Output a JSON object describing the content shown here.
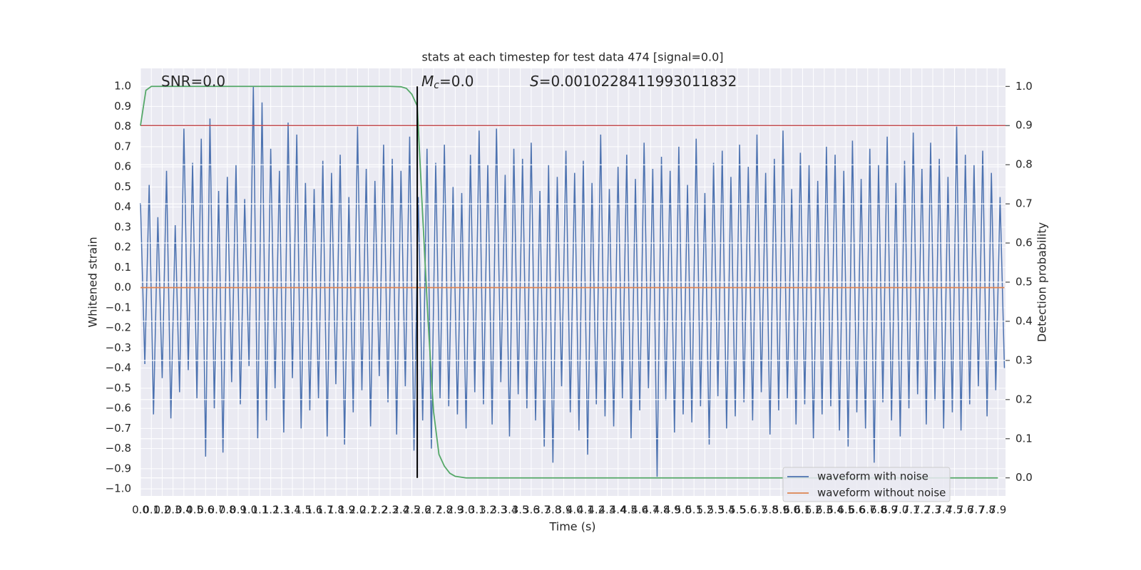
{
  "chart_data": {
    "type": "line",
    "title": "stats at each timestep for test data 474 [signal=0.0]",
    "x_label": "Time (s)",
    "y_label": "Whitened strain",
    "y2_label": "Detection probability",
    "annotations": [
      {
        "text": "SNR=0.0"
      },
      {
        "italic": "M",
        "sub": "c",
        "text": "=0.0"
      },
      {
        "italic": "S",
        "text": "=0.0010228411993011832"
      }
    ],
    "grid": true,
    "legend": "lower right",
    "xlim": [
      0,
      7.97
    ],
    "ylim": [
      -1.035,
      1.089
    ],
    "y2lim": [
      -0.046,
      1.046
    ],
    "xticks": [
      {
        "value": 0,
        "label": "0.0"
      },
      0.1,
      0.2,
      0.3,
      0.4,
      0.5,
      0.6,
      0.7,
      0.8,
      0.9,
      {
        "value": 1,
        "label": "1.0"
      },
      1.1,
      1.2,
      1.3,
      1.4,
      1.5,
      1.6,
      1.7,
      1.8,
      1.9,
      {
        "value": 2,
        "label": "2.0"
      },
      2.1,
      2.2,
      2.3,
      2.4,
      2.5,
      2.6,
      2.7,
      2.8,
      2.9,
      {
        "value": 3,
        "label": "3.0"
      },
      3.1,
      3.2,
      3.3,
      3.4,
      3.5,
      3.6,
      3.7,
      3.8,
      3.9,
      {
        "value": 4,
        "label": "4.0"
      },
      4.1,
      4.2,
      4.3,
      4.4,
      4.5,
      4.6,
      4.7,
      4.8,
      4.9,
      {
        "value": 5,
        "label": "5.0"
      },
      5.1,
      5.2,
      5.3,
      5.4,
      5.5,
      5.6,
      5.7,
      5.8,
      5.9,
      {
        "value": 6,
        "label": "6.0"
      },
      6.1,
      6.2,
      6.3,
      6.4,
      6.5,
      6.6,
      6.7,
      6.8,
      6.9,
      {
        "value": 7,
        "label": "7.0"
      },
      7.1,
      7.2,
      7.3,
      7.4,
      7.5,
      7.6,
      7.7,
      7.8,
      7.9
    ],
    "yticks": [
      {
        "value": -1,
        "label": "−1.0"
      },
      {
        "value": -0.9,
        "label": "−0.9"
      },
      {
        "value": -0.8,
        "label": "−0.8"
      },
      {
        "value": -0.7,
        "label": "−0.7"
      },
      {
        "value": -0.6,
        "label": "−0.6"
      },
      {
        "value": -0.5,
        "label": "−0.5"
      },
      {
        "value": -0.4,
        "label": "−0.4"
      },
      {
        "value": -0.3,
        "label": "−0.3"
      },
      {
        "value": -0.2,
        "label": "−0.2"
      },
      {
        "value": -0.1,
        "label": "−0.1"
      },
      {
        "value": 0,
        "label": "0.0"
      },
      0.1,
      0.2,
      0.3,
      0.4,
      0.5,
      0.6,
      0.7,
      0.8,
      0.9,
      {
        "value": 1,
        "label": "1.0"
      }
    ],
    "y2ticks": [
      {
        "value": 0,
        "label": "0.0"
      },
      0.1,
      0.2,
      0.3,
      0.4,
      0.5,
      0.6,
      0.7,
      0.8,
      0.9,
      {
        "value": 1,
        "label": "1.0"
      }
    ],
    "series": [
      {
        "name": "waveform with noise",
        "color": "#4c72b0",
        "x": [
          0,
          0.04,
          0.08,
          0.12,
          0.16,
          0.2,
          0.24,
          0.28,
          0.32,
          0.36,
          0.4,
          0.44,
          0.48,
          0.52,
          0.56,
          0.6,
          0.64,
          0.68,
          0.72,
          0.76,
          0.8,
          0.84,
          0.88,
          0.92,
          0.96,
          1,
          1.04,
          1.08,
          1.12,
          1.16,
          1.2,
          1.24,
          1.28,
          1.32,
          1.36,
          1.4,
          1.44,
          1.48,
          1.52,
          1.56,
          1.6,
          1.64,
          1.68,
          1.72,
          1.76,
          1.8,
          1.84,
          1.88,
          1.92,
          1.96,
          2,
          2.04,
          2.08,
          2.12,
          2.16,
          2.2,
          2.24,
          2.28,
          2.32,
          2.36,
          2.4,
          2.44,
          2.48,
          2.52,
          2.56,
          2.6,
          2.64,
          2.68,
          2.72,
          2.76,
          2.8,
          2.84,
          2.88,
          2.92,
          2.96,
          3,
          3.04,
          3.08,
          3.12,
          3.16,
          3.2,
          3.24,
          3.28,
          3.32,
          3.36,
          3.4,
          3.44,
          3.48,
          3.52,
          3.56,
          3.6,
          3.64,
          3.68,
          3.72,
          3.76,
          3.8,
          3.84,
          3.88,
          3.92,
          3.96,
          4,
          4.04,
          4.08,
          4.12,
          4.16,
          4.2,
          4.24,
          4.28,
          4.32,
          4.36,
          4.4,
          4.44,
          4.48,
          4.52,
          4.56,
          4.6,
          4.64,
          4.68,
          4.72,
          4.76,
          4.8,
          4.84,
          4.88,
          4.92,
          4.96,
          5,
          5.04,
          5.08,
          5.12,
          5.16,
          5.2,
          5.24,
          5.28,
          5.32,
          5.36,
          5.4,
          5.44,
          5.48,
          5.52,
          5.56,
          5.6,
          5.64,
          5.68,
          5.72,
          5.76,
          5.8,
          5.84,
          5.88,
          5.92,
          5.96,
          6,
          6.04,
          6.08,
          6.12,
          6.16,
          6.2,
          6.24,
          6.28,
          6.32,
          6.36,
          6.4,
          6.44,
          6.48,
          6.52,
          6.56,
          6.6,
          6.64,
          6.68,
          6.72,
          6.76,
          6.8,
          6.84,
          6.88,
          6.92,
          6.96,
          7,
          7.04,
          7.08,
          7.12,
          7.16,
          7.2,
          7.24,
          7.28,
          7.32,
          7.36,
          7.4,
          7.44,
          7.48,
          7.52,
          7.56,
          7.6,
          7.64,
          7.68,
          7.72,
          7.76,
          7.8,
          7.84,
          7.88,
          7.92,
          7.96
        ],
        "values": [
          0.42,
          -0.38,
          0.51,
          -0.63,
          0.35,
          -0.45,
          0.58,
          -0.65,
          0.31,
          -0.52,
          0.79,
          -0.41,
          0.62,
          -0.55,
          0.74,
          -0.84,
          0.84,
          -0.6,
          0.48,
          -0.82,
          0.55,
          -0.47,
          0.61,
          -0.58,
          0.44,
          -0.39,
          1.0,
          -0.75,
          0.92,
          -0.66,
          0.69,
          -0.5,
          0.58,
          -0.72,
          0.82,
          -0.45,
          0.76,
          -0.7,
          0.52,
          -0.61,
          0.49,
          -0.55,
          0.63,
          -0.74,
          0.57,
          -0.48,
          0.66,
          -0.78,
          0.45,
          -0.62,
          0.8,
          -0.51,
          0.59,
          -0.69,
          0.53,
          -0.44,
          0.71,
          -0.57,
          0.64,
          -0.73,
          0.58,
          -0.49,
          0.75,
          -0.81,
          0.45,
          -0.66,
          0.69,
          -0.8,
          0.62,
          -0.55,
          0.71,
          -0.59,
          0.5,
          -0.63,
          0.47,
          -0.7,
          0.66,
          -0.52,
          0.78,
          -0.58,
          0.61,
          -0.68,
          0.79,
          -0.47,
          0.56,
          -0.74,
          0.69,
          -0.53,
          0.64,
          -0.6,
          0.72,
          -0.66,
          0.48,
          -0.79,
          0.61,
          -0.87,
          0.55,
          -0.49,
          0.68,
          -0.62,
          0.57,
          -0.71,
          0.63,
          -0.83,
          0.52,
          -0.58,
          0.76,
          -0.64,
          0.49,
          -0.69,
          0.6,
          -0.55,
          0.66,
          -0.75,
          0.54,
          -0.61,
          0.72,
          -0.5,
          0.59,
          -0.94,
          0.65,
          -0.56,
          0.58,
          -0.72,
          0.7,
          -0.63,
          0.51,
          -0.67,
          0.74,
          -0.59,
          0.47,
          -0.78,
          0.62,
          -0.54,
          0.68,
          -0.7,
          0.55,
          -0.64,
          0.71,
          -0.57,
          0.6,
          -0.66,
          0.76,
          -0.52,
          0.57,
          -0.73,
          0.64,
          -0.61,
          0.78,
          -0.55,
          0.49,
          -0.68,
          0.67,
          -0.58,
          0.61,
          -0.75,
          0.53,
          -0.63,
          0.7,
          -0.59,
          0.66,
          -0.71,
          0.58,
          -0.79,
          0.73,
          -0.62,
          0.54,
          -0.7,
          0.69,
          -0.87,
          0.61,
          -0.57,
          0.75,
          -0.66,
          0.52,
          -0.74,
          0.63,
          -0.6,
          0.77,
          -0.53,
          0.59,
          -0.68,
          0.72,
          -0.56,
          0.64,
          -0.7,
          0.55,
          -0.62,
          0.8,
          -0.71,
          0.66,
          -0.58,
          0.61,
          -0.49,
          0.68,
          -0.64,
          0.57,
          -0.51,
          0.45,
          -0.4
        ]
      },
      {
        "name": "waveform without noise",
        "color": "#dd8452",
        "x": [
          0,
          7.96
        ],
        "values": [
          0,
          0
        ]
      }
    ],
    "probability": {
      "color": "#55a868",
      "axis": "y2",
      "x": [
        0,
        0.05,
        0.1,
        0.5,
        1,
        1.5,
        2,
        2.3,
        2.4,
        2.45,
        2.5,
        2.55,
        2.6,
        2.65,
        2.7,
        2.75,
        2.8,
        2.85,
        2.9,
        3,
        3.5,
        4,
        5,
        6,
        7,
        7.9
      ],
      "values": [
        0.9,
        0.99,
        1,
        1,
        1,
        1,
        1,
        1,
        0.999,
        0.995,
        0.98,
        0.95,
        0.67,
        0.4,
        0.17,
        0.06,
        0.03,
        0.012,
        0.004,
        0,
        0,
        0,
        0,
        0,
        0,
        0
      ]
    },
    "threshold": {
      "value": 0.9,
      "axis": "y2",
      "color": "#c44e52"
    },
    "marker": {
      "x": 2.55,
      "ymin": 0,
      "ymax": 1,
      "axis": "y2",
      "color": "#000000"
    }
  }
}
